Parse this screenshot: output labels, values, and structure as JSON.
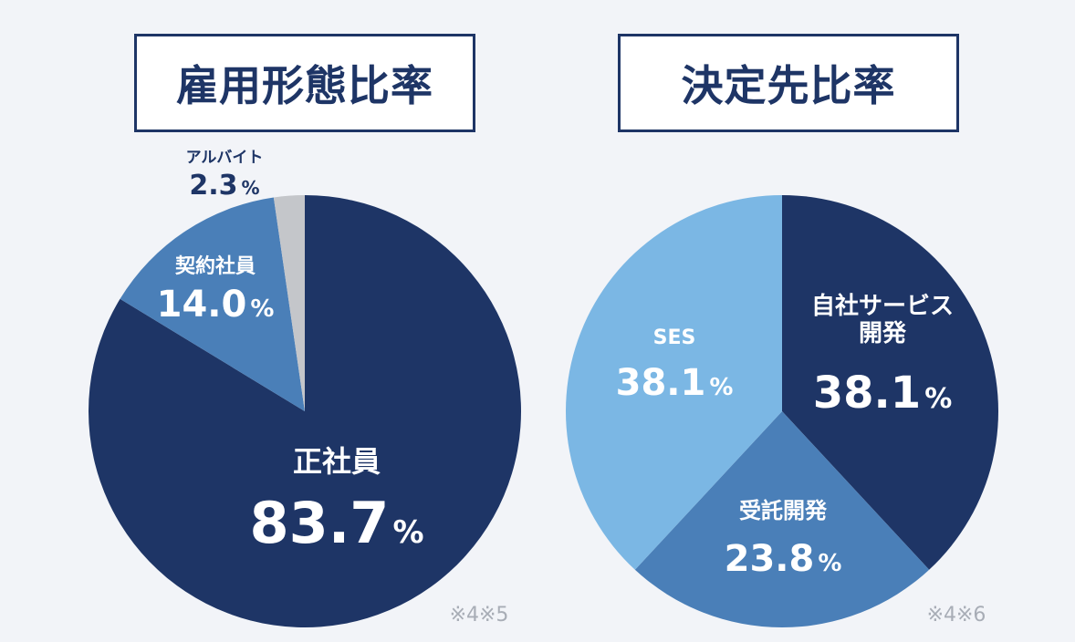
{
  "chart_data": [
    {
      "type": "pie",
      "title": "雇用形態比率",
      "slices": [
        {
          "label": "正社員",
          "value": 83.7,
          "value_text": "83.7",
          "color": "#1e3566",
          "label_color": "#ffffff"
        },
        {
          "label": "契約社員",
          "value": 14.0,
          "value_text": "14.0",
          "color": "#4a7fb8",
          "label_color": "#ffffff"
        },
        {
          "label": "アルバイト",
          "value": 2.3,
          "value_text": "2.3",
          "color": "#c4c6ca",
          "label_color": "#1e3566"
        }
      ],
      "unit": "%",
      "note": "※4※5"
    },
    {
      "type": "pie",
      "title": "決定先比率",
      "slices": [
        {
          "label": "自社サービス\n開発",
          "value": 38.1,
          "value_text": "38.1",
          "color": "#1e3566",
          "label_color": "#ffffff"
        },
        {
          "label": "受託開発",
          "value": 23.8,
          "value_text": "23.8",
          "color": "#4a7fb8",
          "label_color": "#ffffff"
        },
        {
          "label": "SES",
          "value": 38.1,
          "value_text": "38.1",
          "color": "#7bb7e4",
          "label_color": "#ffffff"
        }
      ],
      "unit": "%",
      "note": "※4※6"
    }
  ]
}
